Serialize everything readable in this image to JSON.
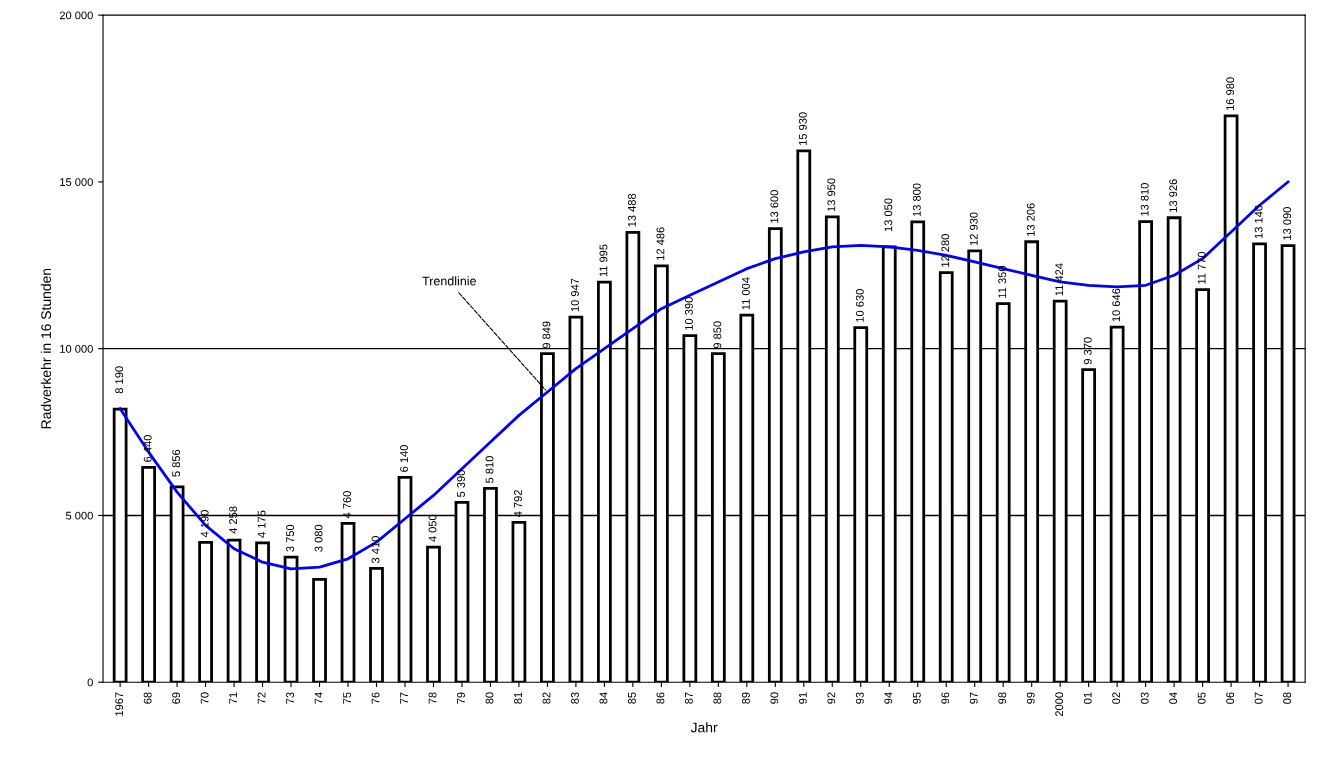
{
  "chart_data": {
    "type": "bar",
    "xlabel": "Jahr",
    "ylabel": "Radverkehr in 16 Stunden",
    "categories": [
      "1967",
      "68",
      "69",
      "70",
      "71",
      "72",
      "73",
      "74",
      "75",
      "76",
      "77",
      "78",
      "79",
      "80",
      "81",
      "82",
      "83",
      "84",
      "85",
      "86",
      "87",
      "88",
      "89",
      "90",
      "91",
      "92",
      "93",
      "94",
      "95",
      "96",
      "97",
      "98",
      "99",
      "2000",
      "01",
      "02",
      "03",
      "04",
      "05",
      "06",
      "07",
      "08"
    ],
    "series": [
      {
        "color": "#ffffff",
        "values": [
          8190,
          6440,
          5856,
          4190,
          4258,
          4175,
          3750,
          3080,
          4760,
          3410,
          6140,
          4050,
          5390,
          5810,
          4792,
          9849,
          10947,
          11995,
          13488,
          12486,
          10390,
          9850,
          11004,
          13600,
          15930,
          13950,
          10630,
          13050,
          13800,
          12280,
          12930,
          11350,
          13206,
          11424,
          9370,
          10646,
          13810,
          13926,
          11770,
          16980,
          13140,
          13090
        ],
        "value_labels": [
          "8 190",
          "6 440",
          "5 856",
          "4 190",
          "4 258",
          "4 175",
          "3 750",
          "3 080",
          "4 760",
          "3 410",
          "6 140",
          "4 050",
          "5 390",
          "5 810",
          "4 792",
          "9 849",
          "10 947",
          "11 995",
          "13 488",
          "12 486",
          "10 390",
          "9 850",
          "11 004",
          "13 600",
          "15 930",
          "13 950",
          "10 630",
          "13 050",
          "13 800",
          "12 280",
          "12 930",
          "11 350",
          "13 206",
          "11 424",
          "9 370",
          "10 646",
          "13 810",
          "13 926",
          "11 770",
          "16 980",
          "13 140",
          "13 090"
        ]
      },
      {
        "type": "line",
        "color": "#0000ff",
        "values": [
          8200,
          6900,
          5700,
          4700,
          4000,
          3600,
          3400,
          3450,
          3700,
          4200,
          4900,
          5600,
          6400,
          7200,
          8000,
          8700,
          9400,
          10000,
          10600,
          11200,
          11600,
          12000,
          12400,
          12700,
          12900,
          13050,
          13100,
          13050,
          12950,
          12800,
          12600,
          12400,
          12200,
          12000,
          11900,
          11850,
          11900,
          12200,
          12700,
          13500,
          14300,
          15000
        ]
      }
    ],
    "ylim": [
      0,
      20000
    ],
    "yticks": [
      {
        "value": 0,
        "label": "0"
      },
      {
        "value": 5000,
        "label": "5 000"
      },
      {
        "value": 10000,
        "label": "10 000"
      },
      {
        "value": 15000,
        "label": "15 000"
      },
      {
        "value": 20000,
        "label": "20 000"
      }
    ],
    "ref_lines": [
      {
        "axis": "y",
        "value": 5000,
        "color": "#000000"
      },
      {
        "axis": "y",
        "value": 10000,
        "color": "#000000"
      }
    ],
    "annotations": [
      {
        "text": "Trendlinie",
        "x": "82",
        "y": 8700
      }
    ],
    "legend": false,
    "grid": false
  }
}
